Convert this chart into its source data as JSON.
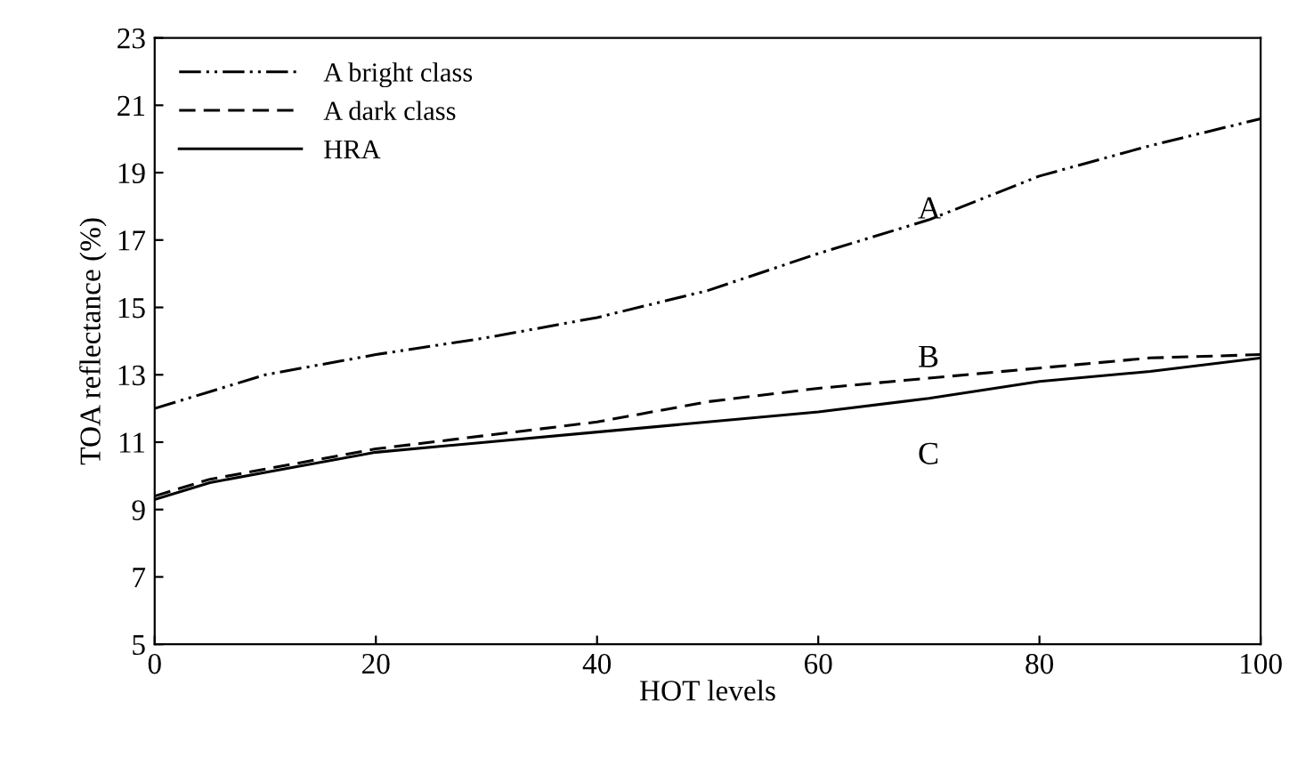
{
  "chart_data": {
    "type": "line",
    "xlabel": "HOT levels",
    "ylabel": "TOA reflectance (%)",
    "xlim": [
      0,
      100
    ],
    "xticks": [
      0,
      20,
      40,
      60,
      80,
      100
    ],
    "ylim": [
      5,
      23
    ],
    "yticks": [
      5,
      7,
      9,
      11,
      13,
      15,
      17,
      19,
      21,
      23
    ],
    "grid": false,
    "legend": "top left",
    "marker": "none",
    "x": [
      0,
      5,
      10,
      20,
      30,
      40,
      50,
      60,
      70,
      80,
      90,
      100
    ],
    "series": [
      {
        "name": "A bright class",
        "color": "#000000",
        "line_style": "dashdotdot",
        "values": [
          12.0,
          12.5,
          13.0,
          13.6,
          14.1,
          14.7,
          15.5,
          16.6,
          17.6,
          18.9,
          19.8,
          20.6
        ]
      },
      {
        "name": "A dark class",
        "color": "#000000",
        "line_style": "dashed",
        "values": [
          9.4,
          9.9,
          10.2,
          10.8,
          11.2,
          11.6,
          12.2,
          12.6,
          12.9,
          13.2,
          13.5,
          13.6
        ]
      },
      {
        "name": "HRA",
        "color": "#000000",
        "line_style": "solid",
        "values": [
          9.3,
          9.8,
          10.1,
          10.7,
          11.0,
          11.3,
          11.6,
          11.9,
          12.3,
          12.8,
          13.1,
          13.5
        ]
      }
    ],
    "annotations": [
      "A",
      "B",
      "C"
    ]
  }
}
